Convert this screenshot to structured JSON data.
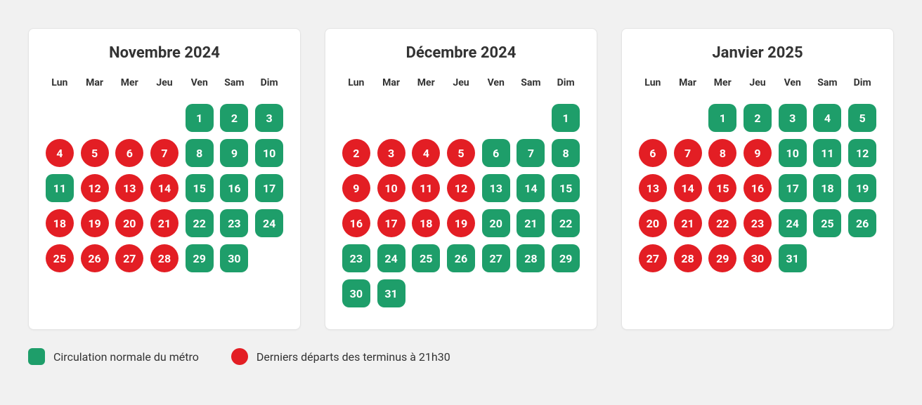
{
  "colors": {
    "green": "#1e9e6a",
    "red": "#e31e24",
    "bg": "#f1f1f1",
    "card": "#ffffff"
  },
  "days_of_week": [
    "Lun",
    "Mar",
    "Mer",
    "Jeu",
    "Ven",
    "Sam",
    "Dim"
  ],
  "months": [
    {
      "title": "Novembre 2024",
      "first_weekday": 4,
      "days": [
        {
          "n": 1,
          "s": "green"
        },
        {
          "n": 2,
          "s": "green"
        },
        {
          "n": 3,
          "s": "green"
        },
        {
          "n": 4,
          "s": "red"
        },
        {
          "n": 5,
          "s": "red"
        },
        {
          "n": 6,
          "s": "red"
        },
        {
          "n": 7,
          "s": "red"
        },
        {
          "n": 8,
          "s": "green"
        },
        {
          "n": 9,
          "s": "green"
        },
        {
          "n": 10,
          "s": "green"
        },
        {
          "n": 11,
          "s": "green"
        },
        {
          "n": 12,
          "s": "red"
        },
        {
          "n": 13,
          "s": "red"
        },
        {
          "n": 14,
          "s": "red"
        },
        {
          "n": 15,
          "s": "green"
        },
        {
          "n": 16,
          "s": "green"
        },
        {
          "n": 17,
          "s": "green"
        },
        {
          "n": 18,
          "s": "red"
        },
        {
          "n": 19,
          "s": "red"
        },
        {
          "n": 20,
          "s": "red"
        },
        {
          "n": 21,
          "s": "red"
        },
        {
          "n": 22,
          "s": "green"
        },
        {
          "n": 23,
          "s": "green"
        },
        {
          "n": 24,
          "s": "green"
        },
        {
          "n": 25,
          "s": "red"
        },
        {
          "n": 26,
          "s": "red"
        },
        {
          "n": 27,
          "s": "red"
        },
        {
          "n": 28,
          "s": "red"
        },
        {
          "n": 29,
          "s": "green"
        },
        {
          "n": 30,
          "s": "green"
        }
      ]
    },
    {
      "title": "Décembre 2024",
      "first_weekday": 6,
      "days": [
        {
          "n": 1,
          "s": "green"
        },
        {
          "n": 2,
          "s": "red"
        },
        {
          "n": 3,
          "s": "red"
        },
        {
          "n": 4,
          "s": "red"
        },
        {
          "n": 5,
          "s": "red"
        },
        {
          "n": 6,
          "s": "green"
        },
        {
          "n": 7,
          "s": "green"
        },
        {
          "n": 8,
          "s": "green"
        },
        {
          "n": 9,
          "s": "red"
        },
        {
          "n": 10,
          "s": "red"
        },
        {
          "n": 11,
          "s": "red"
        },
        {
          "n": 12,
          "s": "red"
        },
        {
          "n": 13,
          "s": "green"
        },
        {
          "n": 14,
          "s": "green"
        },
        {
          "n": 15,
          "s": "green"
        },
        {
          "n": 16,
          "s": "red"
        },
        {
          "n": 17,
          "s": "red"
        },
        {
          "n": 18,
          "s": "red"
        },
        {
          "n": 19,
          "s": "red"
        },
        {
          "n": 20,
          "s": "green"
        },
        {
          "n": 21,
          "s": "green"
        },
        {
          "n": 22,
          "s": "green"
        },
        {
          "n": 23,
          "s": "green"
        },
        {
          "n": 24,
          "s": "green"
        },
        {
          "n": 25,
          "s": "green"
        },
        {
          "n": 26,
          "s": "green"
        },
        {
          "n": 27,
          "s": "green"
        },
        {
          "n": 28,
          "s": "green"
        },
        {
          "n": 29,
          "s": "green"
        },
        {
          "n": 30,
          "s": "green"
        },
        {
          "n": 31,
          "s": "green"
        }
      ]
    },
    {
      "title": "Janvier 2025",
      "first_weekday": 2,
      "days": [
        {
          "n": 1,
          "s": "green"
        },
        {
          "n": 2,
          "s": "green"
        },
        {
          "n": 3,
          "s": "green"
        },
        {
          "n": 4,
          "s": "green"
        },
        {
          "n": 5,
          "s": "green"
        },
        {
          "n": 6,
          "s": "red"
        },
        {
          "n": 7,
          "s": "red"
        },
        {
          "n": 8,
          "s": "red"
        },
        {
          "n": 9,
          "s": "red"
        },
        {
          "n": 10,
          "s": "green"
        },
        {
          "n": 11,
          "s": "green"
        },
        {
          "n": 12,
          "s": "green"
        },
        {
          "n": 13,
          "s": "red"
        },
        {
          "n": 14,
          "s": "red"
        },
        {
          "n": 15,
          "s": "red"
        },
        {
          "n": 16,
          "s": "red"
        },
        {
          "n": 17,
          "s": "green"
        },
        {
          "n": 18,
          "s": "green"
        },
        {
          "n": 19,
          "s": "green"
        },
        {
          "n": 20,
          "s": "red"
        },
        {
          "n": 21,
          "s": "red"
        },
        {
          "n": 22,
          "s": "red"
        },
        {
          "n": 23,
          "s": "red"
        },
        {
          "n": 24,
          "s": "green"
        },
        {
          "n": 25,
          "s": "green"
        },
        {
          "n": 26,
          "s": "green"
        },
        {
          "n": 27,
          "s": "red"
        },
        {
          "n": 28,
          "s": "red"
        },
        {
          "n": 29,
          "s": "red"
        },
        {
          "n": 30,
          "s": "red"
        },
        {
          "n": 31,
          "s": "green"
        }
      ]
    }
  ],
  "legend": {
    "normal": "Circulation normale du métro",
    "early": "Derniers départs des terminus à 21h30"
  }
}
